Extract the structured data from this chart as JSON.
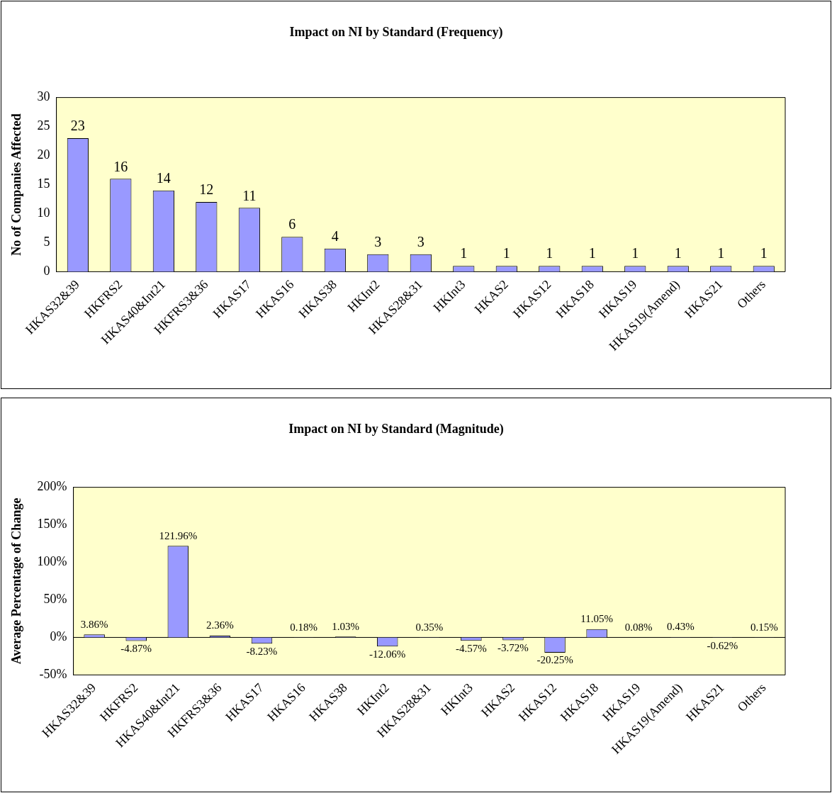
{
  "chart_data": [
    {
      "type": "bar",
      "title": "Impact on NI by Standard (Frequency)",
      "ylabel": "No of Companies Affected",
      "categories": [
        "HKAS32&39",
        "HKFRS2",
        "HKAS40&Int21",
        "HKFRS3&36",
        "HKAS17",
        "HKAS16",
        "HKAS38",
        "HKInt2",
        "HKAS28&31",
        "HKInt3",
        "HKAS2",
        "HKAS12",
        "HKAS18",
        "HKAS19",
        "HKAS19(Amend)",
        "HKAS21",
        "Others"
      ],
      "values": [
        23,
        16,
        14,
        12,
        11,
        6,
        4,
        3,
        3,
        1,
        1,
        1,
        1,
        1,
        1,
        1,
        1
      ],
      "color": "#9999ff",
      "ylim": [
        0,
        30
      ],
      "yticks": [
        0,
        5,
        10,
        15,
        20,
        25,
        30
      ],
      "data_labels": true,
      "grid": false,
      "legend": false
    },
    {
      "type": "bar",
      "title": "Impact on NI by Standard (Magnitude)",
      "ylabel": "Average Percentage of Change",
      "categories": [
        "HKAS32&39",
        "HKFRS2",
        "HKAS40&Int21",
        "HKFRS3&36",
        "HKAS17",
        "HKAS16",
        "HKAS38",
        "HKInt2",
        "HKAS28&31",
        "HKInt3",
        "HKAS2",
        "HKAS12",
        "HKAS18",
        "HKAS19",
        "HKAS19(Amend)",
        "HKAS21",
        "Others"
      ],
      "values": [
        3.86,
        -4.87,
        121.96,
        2.36,
        -8.23,
        0.18,
        1.03,
        -12.06,
        0.35,
        -4.57,
        -3.72,
        -20.25,
        11.05,
        0.08,
        0.43,
        -0.62,
        0.15
      ],
      "value_labels": [
        "3.86%",
        "-4.87%",
        "121.96%",
        "2.36%",
        "-8.23%",
        "0.18%",
        "1.03%",
        "-12.06%",
        "0.35%",
        "-4.57%",
        "-3.72%",
        "-20.25%",
        "11.05%",
        "0.08%",
        "0.43%",
        "-0.62%",
        "0.15%"
      ],
      "color": "#9999ff",
      "ref_lines": [
        {
          "axis": "y",
          "value": 0,
          "color": "#000000"
        }
      ],
      "ylim": [
        -50,
        200
      ],
      "yticks": [
        {
          "value": -50,
          "label": "-50%"
        },
        {
          "value": 0,
          "label": "0%"
        },
        {
          "value": 50,
          "label": "50%"
        },
        {
          "value": 100,
          "label": "100%"
        },
        {
          "value": 150,
          "label": "150%"
        },
        {
          "value": 200,
          "label": "200%"
        }
      ],
      "grid": false,
      "legend": false
    }
  ]
}
